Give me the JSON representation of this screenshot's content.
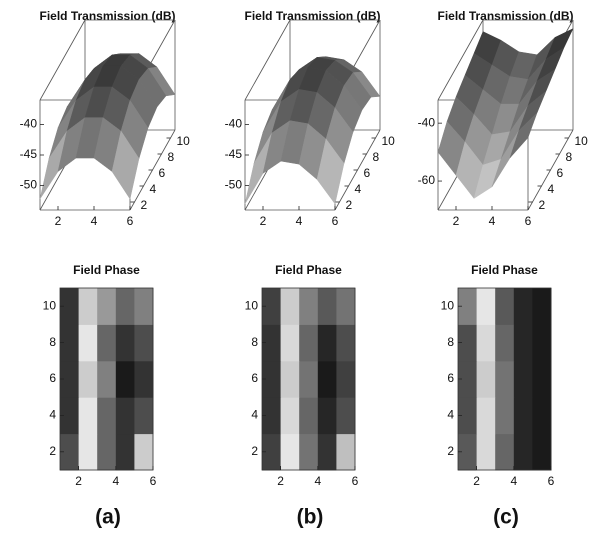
{
  "panel_labels": [
    "(a)",
    "(b)",
    "(c)"
  ],
  "colormap": "gray",
  "chart_data": [
    {
      "type": "surface3d",
      "title": "Field Transmission (dB)",
      "x": [
        1,
        2,
        3,
        4,
        5,
        6
      ],
      "y": [
        1,
        3,
        5,
        7,
        9,
        11
      ],
      "z": [
        [
          -52.2,
          -47.7,
          -45.5,
          -45.5,
          -47.7,
          -52.2
        ],
        [
          -48.2,
          -43.7,
          -41.5,
          -41.5,
          -43.7,
          -48.2
        ],
        [
          -45.8,
          -41.3,
          -39.1,
          -39.1,
          -41.3,
          -45.8
        ],
        [
          -45,
          -40.5,
          -38.3,
          -38.3,
          -40.5,
          -45
        ],
        [
          -45.8,
          -41.3,
          -39.1,
          -39.1,
          -41.3,
          -45.8
        ],
        [
          -48.2,
          -43.7,
          -41.5,
          -41.5,
          -43.7,
          -48.2
        ]
      ],
      "xlim": [
        1,
        6
      ],
      "ylim": [
        1,
        11
      ],
      "zlim": [
        -54,
        -36
      ],
      "xticks": [
        2,
        4,
        6
      ],
      "yticks": [
        2,
        4,
        6,
        8,
        10
      ],
      "zticks": [
        -40,
        -45,
        -50
      ]
    },
    {
      "type": "surface3d",
      "title": "Field Transmission (dB)",
      "x": [
        1,
        2,
        3,
        4,
        5,
        6
      ],
      "y": [
        1,
        3,
        5,
        7,
        9,
        11
      ],
      "z": [
        [
          -53,
          -48,
          -46,
          -46.5,
          -49,
          -53
        ],
        [
          -49,
          -44,
          -42,
          -42.5,
          -45,
          -49
        ],
        [
          -46.5,
          -41.5,
          -39.5,
          -40,
          -42.5,
          -46.5
        ],
        [
          -45.5,
          -40.5,
          -38.5,
          -39,
          -41.5,
          -45.5
        ],
        [
          -46,
          -41.5,
          -39.5,
          -40,
          -42,
          -46
        ],
        [
          -48.5,
          -44,
          -42,
          -42.5,
          -44.5,
          -48.5
        ]
      ],
      "xlim": [
        1,
        6
      ],
      "ylim": [
        1,
        11
      ],
      "zlim": [
        -54,
        -36
      ],
      "xticks": [
        2,
        4,
        6
      ],
      "yticks": [
        2,
        4,
        6,
        8,
        10
      ],
      "zticks": [
        -40,
        -45,
        -50
      ]
    },
    {
      "type": "surface3d",
      "title": "Field Transmission (dB)",
      "x": [
        1,
        2,
        3,
        4,
        5,
        6
      ],
      "y": [
        1,
        3,
        5,
        7,
        9,
        11
      ],
      "z": [
        [
          -50,
          -58,
          -66,
          -62,
          -52,
          -45
        ],
        [
          -45,
          -52,
          -60,
          -58,
          -48,
          -42
        ],
        [
          -42,
          -48,
          -55,
          -54,
          -45,
          -40
        ],
        [
          -40,
          -45,
          -50,
          -50,
          -42,
          -38
        ],
        [
          -38,
          -42,
          -46,
          -47,
          -40,
          -36
        ],
        [
          -36,
          -39,
          -43,
          -44,
          -38,
          -35
        ]
      ],
      "xlim": [
        1,
        6
      ],
      "ylim": [
        1,
        11
      ],
      "zlim": [
        -70,
        -32
      ],
      "xticks": [
        2,
        4,
        6
      ],
      "yticks": [
        2,
        4,
        6,
        8,
        10
      ],
      "zticks": [
        -40,
        -60
      ]
    },
    {
      "type": "heatmap",
      "title": "Field Phase",
      "x_bins": [
        1,
        2,
        3,
        4,
        5,
        6
      ],
      "y_bins": [
        1,
        3,
        5,
        7,
        9,
        11
      ],
      "values": [
        [
          0.3,
          0.9,
          0.4,
          0.2,
          0.8
        ],
        [
          0.2,
          0.9,
          0.4,
          0.2,
          0.3
        ],
        [
          0.2,
          0.8,
          0.5,
          0.1,
          0.2
        ],
        [
          0.2,
          0.9,
          0.4,
          0.2,
          0.3
        ],
        [
          0.2,
          0.8,
          0.6,
          0.4,
          0.5
        ]
      ],
      "xlim": [
        1,
        6
      ],
      "ylim": [
        1,
        11
      ],
      "xticks": [
        2,
        4,
        6
      ],
      "yticks": [
        2,
        4,
        6,
        8,
        10
      ]
    },
    {
      "type": "heatmap",
      "title": "Field Phase",
      "x_bins": [
        1,
        2,
        3,
        4,
        5,
        6
      ],
      "y_bins": [
        1,
        3,
        5,
        7,
        9,
        11
      ],
      "values": [
        [
          0.25,
          0.9,
          0.45,
          0.2,
          0.75
        ],
        [
          0.2,
          0.85,
          0.4,
          0.15,
          0.3
        ],
        [
          0.2,
          0.8,
          0.45,
          0.1,
          0.25
        ],
        [
          0.2,
          0.85,
          0.4,
          0.15,
          0.3
        ],
        [
          0.25,
          0.8,
          0.5,
          0.35,
          0.45
        ]
      ],
      "xlim": [
        1,
        6
      ],
      "ylim": [
        1,
        11
      ],
      "xticks": [
        2,
        4,
        6
      ],
      "yticks": [
        2,
        4,
        6,
        8,
        10
      ]
    },
    {
      "type": "heatmap",
      "title": "Field Phase",
      "x_bins": [
        1,
        2,
        3,
        4,
        5,
        6
      ],
      "y_bins": [
        1,
        3,
        5,
        7,
        9,
        11
      ],
      "values": [
        [
          0.35,
          0.85,
          0.4,
          0.15,
          0.1
        ],
        [
          0.3,
          0.85,
          0.45,
          0.15,
          0.1
        ],
        [
          0.3,
          0.8,
          0.45,
          0.15,
          0.1
        ],
        [
          0.3,
          0.85,
          0.4,
          0.15,
          0.1
        ],
        [
          0.5,
          0.9,
          0.35,
          0.15,
          0.1
        ]
      ],
      "xlim": [
        1,
        6
      ],
      "ylim": [
        1,
        11
      ],
      "xticks": [
        2,
        4,
        6
      ],
      "yticks": [
        2,
        4,
        6,
        8,
        10
      ]
    }
  ]
}
